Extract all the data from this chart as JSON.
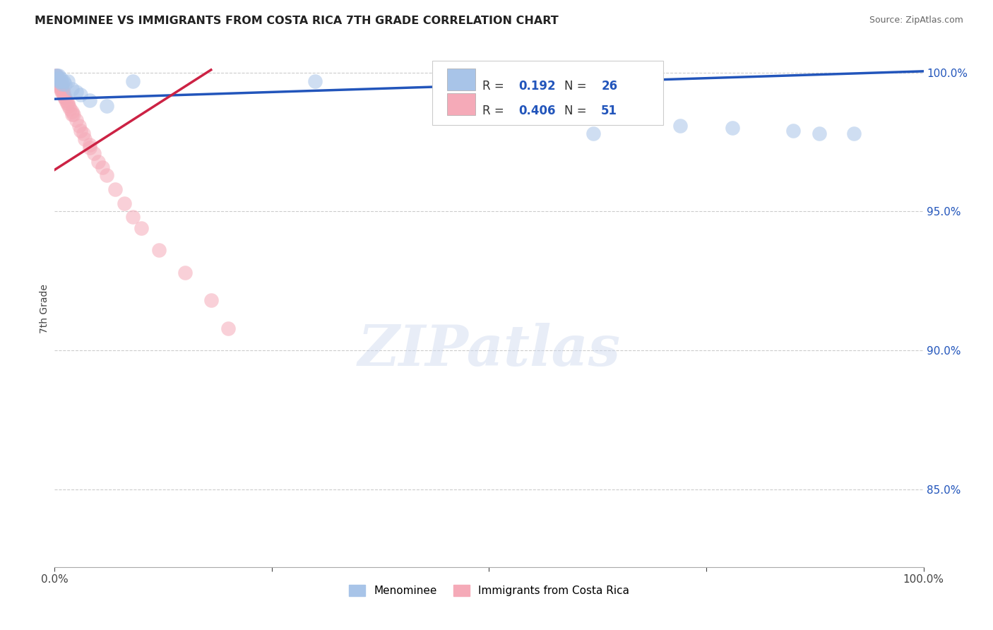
{
  "title": "MENOMINEE VS IMMIGRANTS FROM COSTA RICA 7TH GRADE CORRELATION CHART",
  "source": "Source: ZipAtlas.com",
  "ylabel": "7th Grade",
  "xlim": [
    0.0,
    1.0
  ],
  "ylim": [
    0.822,
    1.008
  ],
  "xticks": [
    0.0,
    0.25,
    0.5,
    0.75,
    1.0
  ],
  "xtick_labels": [
    "0.0%",
    "",
    "",
    "",
    "100.0%"
  ],
  "yticks": [
    0.85,
    0.9,
    0.95,
    1.0
  ],
  "ytick_labels": [
    "85.0%",
    "90.0%",
    "95.0%",
    "100.0%"
  ],
  "blue_R": 0.192,
  "blue_N": 26,
  "pink_R": 0.406,
  "pink_N": 51,
  "blue_color": "#a8c4e8",
  "pink_color": "#f5aab8",
  "blue_line_color": "#2255bb",
  "pink_line_color": "#cc2244",
  "pink_num_color": "#2255bb",
  "watermark": "ZIPatlas",
  "legend_label_blue": "Menominee",
  "legend_label_pink": "Immigrants from Costa Rica",
  "blue_x": [
    0.001,
    0.002,
    0.003,
    0.004,
    0.005,
    0.005,
    0.006,
    0.007,
    0.008,
    0.009,
    0.01,
    0.012,
    0.015,
    0.02,
    0.025,
    0.03,
    0.04,
    0.06,
    0.09,
    0.3,
    0.62,
    0.72,
    0.78,
    0.85,
    0.88,
    0.92
  ],
  "blue_y": [
    0.999,
    0.998,
    0.999,
    0.998,
    0.999,
    0.997,
    0.997,
    0.998,
    0.997,
    0.996,
    0.997,
    0.996,
    0.997,
    0.994,
    0.993,
    0.992,
    0.99,
    0.988,
    0.997,
    0.997,
    0.978,
    0.981,
    0.98,
    0.979,
    0.978,
    0.978
  ],
  "pink_x": [
    0.001,
    0.001,
    0.002,
    0.002,
    0.003,
    0.003,
    0.003,
    0.004,
    0.004,
    0.005,
    0.005,
    0.005,
    0.006,
    0.006,
    0.007,
    0.007,
    0.008,
    0.008,
    0.009,
    0.009,
    0.01,
    0.01,
    0.011,
    0.012,
    0.013,
    0.014,
    0.015,
    0.016,
    0.018,
    0.02,
    0.022,
    0.025,
    0.028,
    0.03,
    0.033,
    0.035,
    0.04,
    0.045,
    0.05,
    0.055,
    0.06,
    0.07,
    0.08,
    0.09,
    0.1,
    0.12,
    0.15,
    0.18,
    0.2,
    0.02,
    0.04
  ],
  "pink_y": [
    0.999,
    0.998,
    0.999,
    0.998,
    0.998,
    0.997,
    0.996,
    0.997,
    0.996,
    0.998,
    0.996,
    0.995,
    0.996,
    0.995,
    0.996,
    0.994,
    0.995,
    0.993,
    0.994,
    0.993,
    0.993,
    0.992,
    0.991,
    0.991,
    0.99,
    0.989,
    0.989,
    0.988,
    0.987,
    0.986,
    0.985,
    0.983,
    0.981,
    0.979,
    0.978,
    0.976,
    0.974,
    0.971,
    0.968,
    0.966,
    0.963,
    0.958,
    0.953,
    0.948,
    0.944,
    0.936,
    0.928,
    0.918,
    0.908,
    0.985,
    0.973
  ]
}
